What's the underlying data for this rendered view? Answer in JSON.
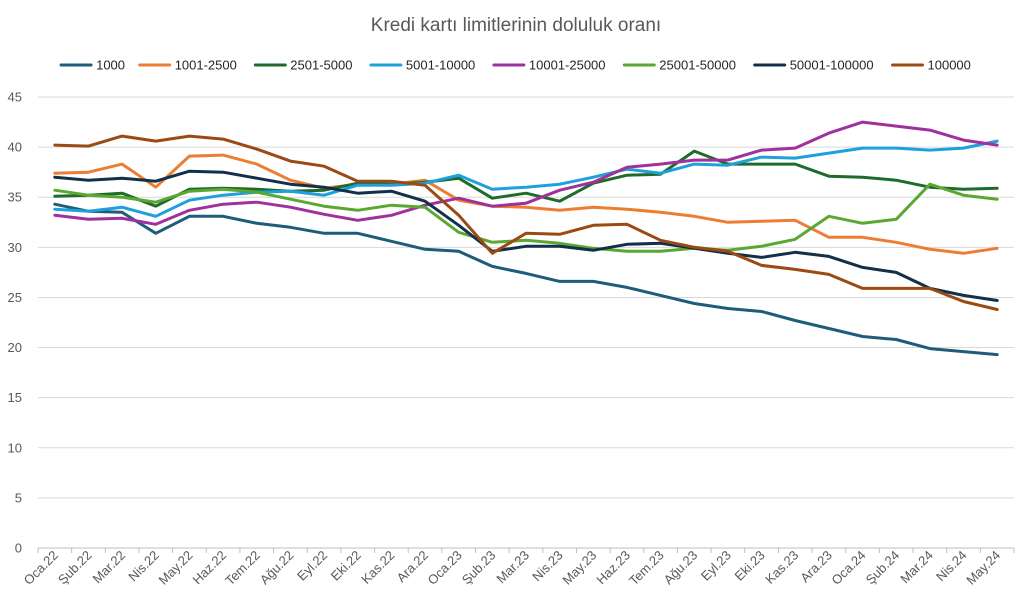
{
  "chart_data": {
    "type": "line",
    "title": "Kredi kartı limitlerinin doluluk oranı",
    "xlabel": "",
    "ylabel": "",
    "ylim": [
      0,
      45
    ],
    "yticks": [
      0,
      5,
      10,
      15,
      20,
      25,
      30,
      35,
      40,
      45
    ],
    "grid": true,
    "legend_position": "top",
    "categories": [
      "Oca.22",
      "Şub.22",
      "Mar.22",
      "Nis.22",
      "May.22",
      "Haz.22",
      "Tem.22",
      "Ağu.22",
      "Eyl.22",
      "Eki.22",
      "Kas.22",
      "Ara.22",
      "Oca.23",
      "Şub.23",
      "Mar.23",
      "Nis.23",
      "May.23",
      "Haz.23",
      "Tem.23",
      "Ağu.23",
      "Eyl.23",
      "Eki.23",
      "Kas.23",
      "Ara.23",
      "Oca.24",
      "Şub.24",
      "Mar.24",
      "Nis.24",
      "May.24"
    ],
    "series": [
      {
        "name": "1000",
        "color": "#1f5c7a",
        "values": [
          34.3,
          33.6,
          33.5,
          31.4,
          33.1,
          33.1,
          32.4,
          32.0,
          31.4,
          31.4,
          30.6,
          29.8,
          29.6,
          28.1,
          27.4,
          26.6,
          26.6,
          26.0,
          25.2,
          24.4,
          23.9,
          23.6,
          22.7,
          21.9,
          21.1,
          20.8,
          19.9,
          19.6,
          19.3
        ]
      },
      {
        "name": "1001-2500",
        "color": "#ed7d31",
        "values": [
          37.4,
          37.5,
          38.3,
          36.0,
          39.1,
          39.2,
          38.3,
          36.7,
          35.9,
          36.3,
          36.3,
          36.7,
          34.7,
          34.1,
          34.0,
          33.7,
          34.0,
          33.8,
          33.5,
          33.1,
          32.5,
          32.6,
          32.7,
          31.0,
          31.0,
          30.5,
          29.8,
          29.4,
          29.9
        ]
      },
      {
        "name": "2501-5000",
        "color": "#1e6b2c",
        "values": [
          35.1,
          35.2,
          35.4,
          34.1,
          35.8,
          35.9,
          35.8,
          35.6,
          35.7,
          36.4,
          36.3,
          36.5,
          36.9,
          34.9,
          35.4,
          34.6,
          36.4,
          37.2,
          37.3,
          39.6,
          38.3,
          38.3,
          38.3,
          37.1,
          37.0,
          36.7,
          36.0,
          35.8,
          35.9
        ]
      },
      {
        "name": "5001-10000",
        "color": "#1ea0dc",
        "values": [
          33.8,
          33.6,
          34.0,
          33.1,
          34.7,
          35.2,
          35.5,
          35.6,
          35.2,
          36.2,
          36.2,
          36.4,
          37.2,
          35.8,
          36.0,
          36.3,
          37.0,
          37.8,
          37.4,
          38.3,
          38.2,
          39.0,
          38.9,
          39.4,
          39.9,
          39.9,
          39.7,
          39.9,
          40.6
        ]
      },
      {
        "name": "10001-25000",
        "color": "#a0309c",
        "values": [
          33.2,
          32.8,
          32.9,
          32.3,
          33.7,
          34.3,
          34.5,
          34.0,
          33.3,
          32.7,
          33.2,
          34.2,
          34.9,
          34.1,
          34.4,
          35.7,
          36.5,
          38.0,
          38.3,
          38.7,
          38.7,
          39.7,
          39.9,
          41.4,
          42.5,
          42.1,
          41.7,
          40.7,
          40.2
        ]
      },
      {
        "name": "25001-50000",
        "color": "#5aa832",
        "values": [
          35.7,
          35.2,
          35.0,
          34.5,
          35.6,
          35.8,
          35.5,
          34.8,
          34.1,
          33.7,
          34.2,
          34.0,
          31.5,
          30.5,
          30.7,
          30.4,
          29.9,
          29.6,
          29.6,
          29.9,
          29.7,
          30.1,
          30.8,
          33.1,
          32.4,
          32.8,
          36.3,
          35.2,
          34.8
        ]
      },
      {
        "name": "50001-100000",
        "color": "#13304a",
        "values": [
          37.0,
          36.7,
          36.9,
          36.6,
          37.6,
          37.5,
          36.9,
          36.3,
          36.0,
          35.4,
          35.6,
          34.6,
          32.2,
          29.6,
          30.1,
          30.1,
          29.7,
          30.3,
          30.4,
          29.9,
          29.4,
          29.0,
          29.5,
          29.1,
          28.0,
          27.5,
          25.9,
          25.2,
          24.7
        ]
      },
      {
        "name": "100000",
        "color": "#9b4a13",
        "values": [
          40.2,
          40.1,
          41.1,
          40.6,
          41.1,
          40.8,
          39.8,
          38.6,
          38.1,
          36.6,
          36.6,
          36.2,
          33.2,
          29.4,
          31.4,
          31.3,
          32.2,
          32.3,
          30.7,
          30.0,
          29.6,
          28.2,
          27.8,
          27.3,
          25.9,
          25.9,
          25.9,
          24.6,
          23.8
        ]
      }
    ]
  }
}
